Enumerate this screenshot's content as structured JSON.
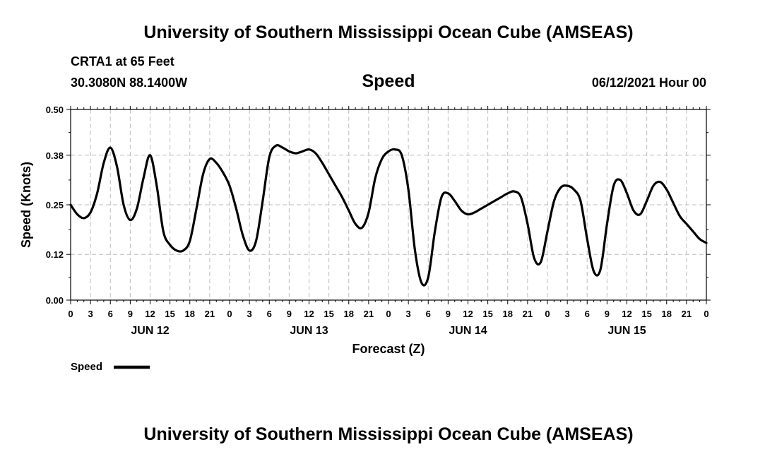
{
  "header": {
    "title_top": "University of Southern Mississippi Ocean Cube (AMSEAS)",
    "station": "CRTA1 at 65 Feet",
    "coords": "30.3080N  88.1400W",
    "variable": "Speed",
    "datetime": "06/12/2021 Hour 00"
  },
  "footer": {
    "title_bottom": "University of Southern Mississippi Ocean Cube (AMSEAS)"
  },
  "chart_data": {
    "type": "line",
    "title": "Speed",
    "xlabel": "Forecast (Z)",
    "ylabel": "Speed (Knots)",
    "ylim": [
      0,
      0.5
    ],
    "xlim": [
      0,
      96
    ],
    "grid": true,
    "yticks": [
      0.0,
      0.12,
      0.25,
      0.38,
      0.5
    ],
    "ytick_labels": [
      "0.00",
      "0.12",
      "0.25",
      "0.38",
      "0.50"
    ],
    "xticks": [
      0,
      3,
      6,
      9,
      12,
      15,
      18,
      21,
      24,
      27,
      30,
      33,
      36,
      39,
      42,
      45,
      48,
      51,
      54,
      57,
      60,
      63,
      66,
      69,
      72,
      75,
      78,
      81,
      84,
      87,
      90,
      93,
      96
    ],
    "xtick_labels": [
      "0",
      "3",
      "6",
      "9",
      "12",
      "15",
      "18",
      "21",
      "0",
      "3",
      "6",
      "9",
      "12",
      "15",
      "18",
      "21",
      "0",
      "3",
      "6",
      "9",
      "12",
      "15",
      "18",
      "21",
      "0",
      "3",
      "6",
      "9",
      "12",
      "15",
      "18",
      "21",
      "0"
    ],
    "day_labels": [
      {
        "hour": 12,
        "label": "JUN 12"
      },
      {
        "hour": 36,
        "label": "JUN 13"
      },
      {
        "hour": 60,
        "label": "JUN 14"
      },
      {
        "hour": 84,
        "label": "JUN 15"
      }
    ],
    "legend": {
      "label": "Speed",
      "position": "bottom-left"
    },
    "series": [
      {
        "name": "Speed",
        "color": "#000000",
        "x": [
          0,
          1,
          2,
          3,
          4,
          5,
          6,
          7,
          8,
          9,
          10,
          11,
          12,
          13,
          14,
          15,
          16,
          17,
          18,
          19,
          20,
          21,
          22,
          23,
          24,
          25,
          26,
          27,
          28,
          29,
          30,
          31,
          32,
          33,
          34,
          35,
          36,
          37,
          38,
          39,
          40,
          41,
          42,
          43,
          44,
          45,
          46,
          47,
          48,
          49,
          50,
          51,
          52,
          53,
          54,
          55,
          56,
          57,
          58,
          59,
          60,
          61,
          62,
          63,
          64,
          65,
          66,
          67,
          68,
          69,
          70,
          71,
          72,
          73,
          74,
          75,
          76,
          77,
          78,
          79,
          80,
          81,
          82,
          83,
          84,
          85,
          86,
          87,
          88,
          89,
          90,
          91,
          92,
          93,
          94,
          95,
          96
        ],
        "values": [
          0.25,
          0.225,
          0.215,
          0.23,
          0.28,
          0.36,
          0.4,
          0.35,
          0.25,
          0.21,
          0.24,
          0.32,
          0.38,
          0.3,
          0.18,
          0.145,
          0.13,
          0.13,
          0.155,
          0.24,
          0.33,
          0.37,
          0.36,
          0.335,
          0.3,
          0.24,
          0.17,
          0.13,
          0.155,
          0.26,
          0.375,
          0.405,
          0.4,
          0.39,
          0.385,
          0.39,
          0.395,
          0.385,
          0.36,
          0.33,
          0.3,
          0.27,
          0.235,
          0.2,
          0.19,
          0.23,
          0.32,
          0.37,
          0.39,
          0.395,
          0.38,
          0.29,
          0.13,
          0.045,
          0.06,
          0.18,
          0.27,
          0.28,
          0.26,
          0.235,
          0.225,
          0.23,
          0.24,
          0.25,
          0.26,
          0.27,
          0.28,
          0.285,
          0.27,
          0.2,
          0.11,
          0.1,
          0.18,
          0.26,
          0.295,
          0.3,
          0.29,
          0.26,
          0.16,
          0.075,
          0.08,
          0.2,
          0.3,
          0.315,
          0.28,
          0.235,
          0.225,
          0.26,
          0.3,
          0.31,
          0.29,
          0.255,
          0.22,
          0.2,
          0.18,
          0.16,
          0.15
        ]
      }
    ]
  }
}
